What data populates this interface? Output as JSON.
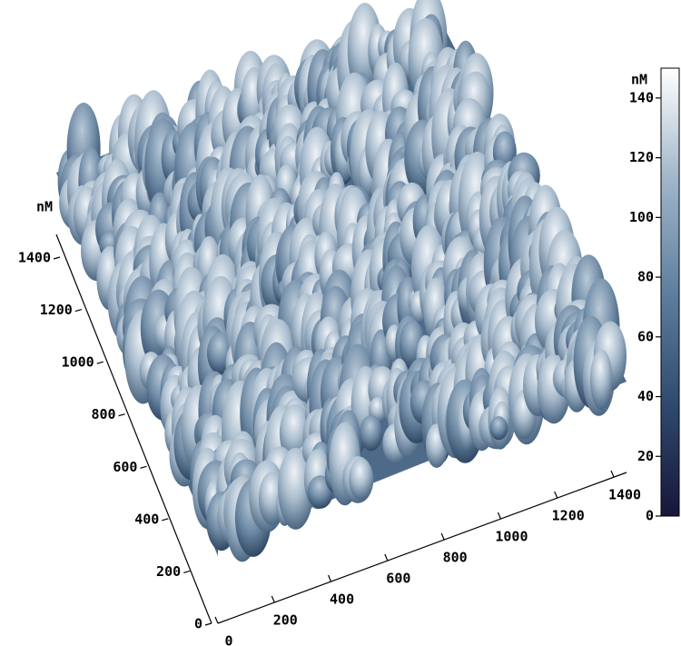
{
  "chart_data": {
    "type": "surface3d",
    "z_label": "nM",
    "xlim": [
      0,
      1400
    ],
    "xticks": [
      0,
      200,
      400,
      600,
      800,
      1000,
      1200,
      1400
    ],
    "ylim": [
      0,
      1400
    ],
    "yticks": [
      0,
      200,
      400,
      600,
      800,
      1000,
      1200,
      1400
    ],
    "colorbar": {
      "label": "nM",
      "lim": [
        0,
        150
      ],
      "ticks": [
        0,
        20,
        40,
        60,
        80,
        100,
        120,
        140
      ],
      "colors": [
        "#16163a",
        "#2f4a6e",
        "#5f7f9f",
        "#9fb5c9",
        "#ffffff"
      ]
    }
  }
}
